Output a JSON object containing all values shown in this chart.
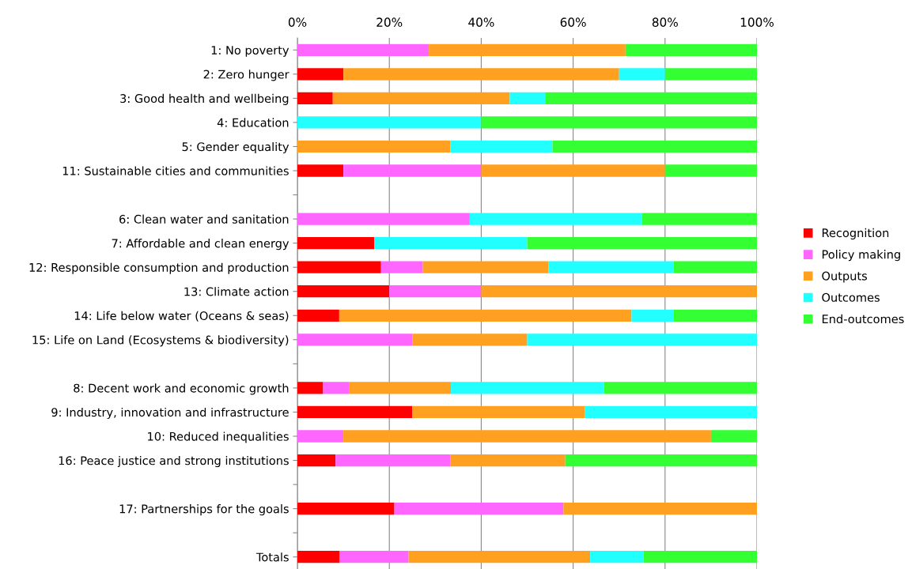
{
  "chart_data": {
    "type": "bar",
    "orientation": "horizontal",
    "stacked": true,
    "categories": [
      "1: No poverty",
      "2: Zero hunger",
      "3: Good health and wellbeing",
      "4: Education",
      "5: Gender equality",
      "11: Sustainable cities and communities",
      null,
      "6: Clean water and sanitation",
      "7: Affordable and clean energy",
      "12: Responsible consumption and production",
      "13: Climate action",
      "14: Life below water (Oceans & seas)",
      "15: Life on Land (Ecosystems & biodiversity)",
      null,
      "8: Decent work and economic growth",
      "9: Industry, innovation and infrastructure",
      "10: Reduced inequalities",
      "16: Peace justice and strong institutions",
      null,
      "17: Partnerships for the goals",
      null,
      "Totals"
    ],
    "series": [
      {
        "name": "Recognition",
        "color": "#ff0000",
        "values": [
          0,
          10,
          7.7,
          0,
          0,
          10,
          null,
          0,
          16.7,
          18.2,
          20,
          9.1,
          0,
          null,
          5.6,
          25,
          0,
          8.3,
          null,
          21.1,
          null,
          9.2
        ]
      },
      {
        "name": "Policy making",
        "color": "#ff66ff",
        "values": [
          28.6,
          0,
          0,
          0,
          0,
          30,
          null,
          37.5,
          0,
          9.1,
          20,
          0,
          25,
          null,
          5.6,
          0,
          10,
          25,
          null,
          36.8,
          null,
          15
        ]
      },
      {
        "name": "Outputs",
        "color": "#ffa020",
        "values": [
          42.8,
          60,
          38.5,
          0,
          33.3,
          40,
          null,
          0,
          0,
          27.3,
          60,
          63.6,
          25,
          null,
          22.2,
          37.5,
          80,
          25,
          null,
          42.1,
          null,
          39.5
        ]
      },
      {
        "name": "Outcomes",
        "color": "#22ffff",
        "values": [
          0,
          10,
          7.7,
          40,
          22.2,
          0,
          null,
          37.5,
          33.3,
          27.3,
          0,
          9.1,
          50,
          null,
          33.3,
          37.5,
          0,
          0,
          null,
          0,
          null,
          11.6
        ]
      },
      {
        "name": "End-outcomes",
        "color": "#33ff33",
        "values": [
          28.6,
          20,
          46.1,
          60,
          44.5,
          20,
          null,
          25,
          50,
          18.1,
          0,
          18.2,
          0,
          null,
          33.3,
          0,
          10,
          41.7,
          null,
          0,
          null,
          24.7
        ]
      }
    ],
    "xlim": [
      0,
      100
    ],
    "xticks": [
      {
        "value": 0,
        "label": "0%"
      },
      {
        "value": 20,
        "label": "20%"
      },
      {
        "value": 40,
        "label": "40%"
      },
      {
        "value": 60,
        "label": "60%"
      },
      {
        "value": 80,
        "label": "80%"
      },
      {
        "value": 100,
        "label": "100%"
      }
    ],
    "grid": "x",
    "legend": "right"
  }
}
